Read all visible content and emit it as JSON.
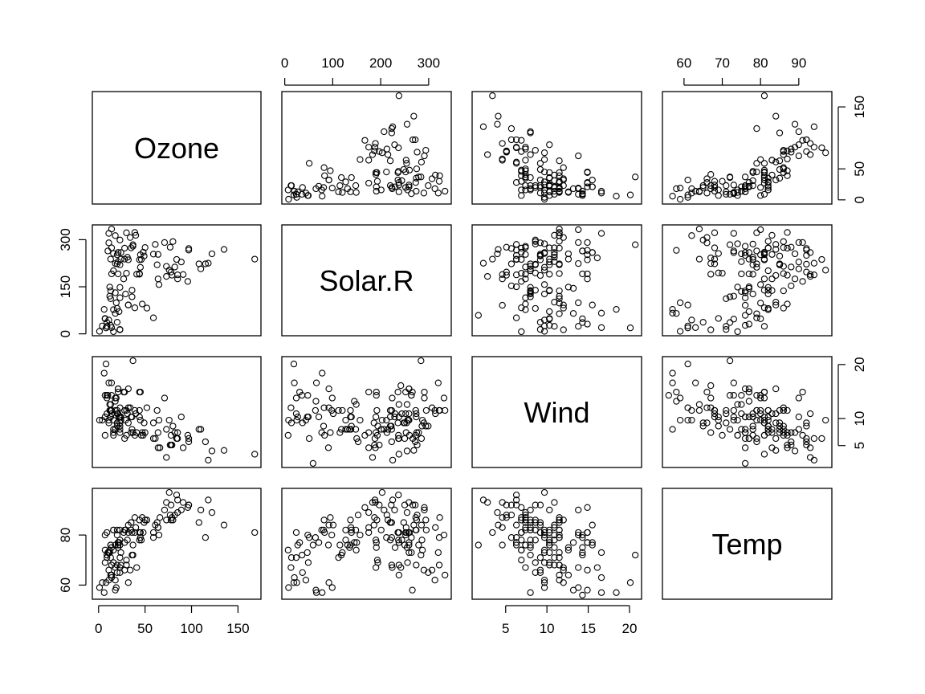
{
  "chart_data": {
    "type": "scatter",
    "subtype": "scatterplot-matrix",
    "grid": false,
    "variables": [
      {
        "name": "Ozone",
        "range": [
          0,
          168
        ],
        "ticks": [
          0,
          50,
          100,
          150
        ]
      },
      {
        "name": "Solar.R",
        "range": [
          7,
          334
        ],
        "ticks": [
          0,
          150,
          300
        ]
      },
      {
        "name": "Wind",
        "range": [
          1.7,
          20.7
        ],
        "ticks": [
          5,
          10,
          15,
          20
        ]
      },
      {
        "name": "Temp",
        "range": [
          56,
          97
        ],
        "ticks": [
          60,
          80
        ]
      }
    ],
    "outer_ticks": {
      "top": [
        {
          "var": 1,
          "ticks": [
            0,
            100,
            200,
            300
          ]
        },
        {
          "var": 3,
          "ticks": [
            60,
            70,
            80,
            90
          ]
        }
      ],
      "right": [
        {
          "var": 0,
          "ticks": [
            0,
            50,
            150
          ]
        },
        {
          "var": 2,
          "ticks": [
            5,
            10,
            20
          ]
        }
      ],
      "bottom": [
        {
          "var": 0,
          "ticks": [
            0,
            50,
            100,
            150
          ]
        },
        {
          "var": 2,
          "ticks": [
            5,
            10,
            15,
            20
          ]
        }
      ],
      "left": [
        {
          "var": 1,
          "ticks": [
            0,
            150,
            300
          ]
        },
        {
          "var": 3,
          "ticks": [
            60,
            80
          ]
        }
      ]
    },
    "observations": [
      [
        41,
        190,
        7.4,
        67
      ],
      [
        36,
        118,
        8.0,
        72
      ],
      [
        12,
        149,
        12.6,
        74
      ],
      [
        18,
        313,
        11.5,
        62
      ],
      [
        null,
        null,
        14.3,
        56
      ],
      [
        28,
        null,
        14.9,
        66
      ],
      [
        23,
        299,
        8.6,
        65
      ],
      [
        19,
        99,
        13.8,
        59
      ],
      [
        8,
        19,
        20.1,
        61
      ],
      [
        null,
        194,
        8.6,
        69
      ],
      [
        7,
        null,
        6.9,
        74
      ],
      [
        16,
        256,
        9.7,
        69
      ],
      [
        11,
        290,
        9.2,
        66
      ],
      [
        14,
        274,
        10.9,
        68
      ],
      [
        18,
        65,
        13.2,
        58
      ],
      [
        14,
        334,
        11.5,
        64
      ],
      [
        34,
        307,
        12.0,
        66
      ],
      [
        6,
        78,
        18.4,
        57
      ],
      [
        30,
        322,
        11.5,
        68
      ],
      [
        11,
        44,
        9.7,
        62
      ],
      [
        1,
        8,
        9.7,
        59
      ],
      [
        11,
        320,
        16.6,
        73
      ],
      [
        4,
        25,
        9.7,
        61
      ],
      [
        32,
        92,
        12.0,
        61
      ],
      [
        null,
        66,
        16.6,
        57
      ],
      [
        null,
        266,
        14.9,
        58
      ],
      [
        null,
        null,
        8.0,
        57
      ],
      [
        23,
        13,
        12.0,
        67
      ],
      [
        45,
        252,
        14.9,
        81
      ],
      [
        115,
        223,
        5.7,
        79
      ],
      [
        37,
        279,
        7.4,
        76
      ],
      [
        null,
        286,
        8.6,
        78
      ],
      [
        null,
        287,
        9.7,
        74
      ],
      [
        null,
        242,
        16.1,
        67
      ],
      [
        null,
        186,
        9.2,
        84
      ],
      [
        null,
        220,
        8.6,
        85
      ],
      [
        null,
        264,
        14.3,
        79
      ],
      [
        29,
        127,
        9.7,
        82
      ],
      [
        null,
        273,
        6.9,
        87
      ],
      [
        71,
        291,
        13.8,
        90
      ],
      [
        39,
        323,
        11.5,
        87
      ],
      [
        null,
        259,
        10.9,
        93
      ],
      [
        null,
        250,
        9.2,
        92
      ],
      [
        23,
        148,
        8.0,
        82
      ],
      [
        null,
        332,
        13.8,
        80
      ],
      [
        null,
        322,
        11.5,
        79
      ],
      [
        21,
        191,
        14.9,
        77
      ],
      [
        37,
        284,
        20.7,
        72
      ],
      [
        20,
        37,
        9.2,
        65
      ],
      [
        12,
        120,
        11.5,
        73
      ],
      [
        13,
        137,
        10.3,
        76
      ],
      [
        null,
        150,
        6.3,
        77
      ],
      [
        null,
        59,
        1.7,
        76
      ],
      [
        null,
        91,
        4.6,
        76
      ],
      [
        null,
        250,
        6.3,
        76
      ],
      [
        null,
        135,
        8.0,
        75
      ],
      [
        null,
        127,
        8.0,
        78
      ],
      [
        null,
        47,
        10.3,
        73
      ],
      [
        null,
        98,
        11.5,
        80
      ],
      [
        null,
        31,
        14.9,
        77
      ],
      [
        null,
        138,
        8.0,
        83
      ],
      [
        135,
        269,
        4.1,
        84
      ],
      [
        49,
        248,
        9.2,
        85
      ],
      [
        32,
        236,
        9.2,
        81
      ],
      [
        null,
        101,
        10.9,
        84
      ],
      [
        64,
        175,
        4.6,
        83
      ],
      [
        40,
        314,
        10.9,
        83
      ],
      [
        77,
        276,
        5.1,
        88
      ],
      [
        97,
        267,
        6.3,
        92
      ],
      [
        97,
        272,
        5.7,
        92
      ],
      [
        85,
        175,
        7.4,
        89
      ],
      [
        null,
        139,
        8.6,
        82
      ],
      [
        10,
        264,
        14.3,
        73
      ],
      [
        27,
        175,
        14.9,
        81
      ],
      [
        null,
        291,
        14.9,
        91
      ],
      [
        7,
        48,
        14.3,
        80
      ],
      [
        48,
        260,
        6.9,
        81
      ],
      [
        35,
        274,
        10.3,
        82
      ],
      [
        61,
        285,
        6.3,
        84
      ],
      [
        79,
        187,
        5.1,
        87
      ],
      [
        63,
        220,
        11.5,
        85
      ],
      [
        16,
        7,
        6.9,
        74
      ],
      [
        null,
        258,
        9.7,
        81
      ],
      [
        null,
        295,
        11.5,
        82
      ],
      [
        80,
        294,
        8.6,
        86
      ],
      [
        108,
        223,
        8.0,
        85
      ],
      [
        20,
        81,
        8.6,
        82
      ],
      [
        52,
        82,
        12.0,
        86
      ],
      [
        82,
        213,
        7.4,
        88
      ],
      [
        50,
        275,
        7.4,
        86
      ],
      [
        64,
        253,
        7.4,
        83
      ],
      [
        59,
        254,
        9.2,
        81
      ],
      [
        39,
        83,
        6.9,
        81
      ],
      [
        9,
        24,
        13.8,
        81
      ],
      [
        16,
        77,
        7.4,
        82
      ],
      [
        78,
        null,
        6.9,
        86
      ],
      [
        35,
        null,
        7.4,
        85
      ],
      [
        66,
        null,
        4.6,
        87
      ],
      [
        122,
        255,
        4.0,
        89
      ],
      [
        89,
        229,
        10.3,
        90
      ],
      [
        110,
        207,
        8.0,
        90
      ],
      [
        null,
        222,
        8.6,
        92
      ],
      [
        null,
        137,
        11.5,
        86
      ],
      [
        44,
        192,
        11.5,
        86
      ],
      [
        28,
        273,
        11.5,
        82
      ],
      [
        65,
        157,
        9.7,
        80
      ],
      [
        null,
        64,
        11.5,
        79
      ],
      [
        22,
        71,
        10.3,
        77
      ],
      [
        59,
        51,
        6.3,
        79
      ],
      [
        23,
        115,
        7.4,
        76
      ],
      [
        31,
        244,
        10.9,
        78
      ],
      [
        44,
        190,
        10.3,
        78
      ],
      [
        21,
        259,
        15.5,
        77
      ],
      [
        9,
        36,
        14.3,
        72
      ],
      [
        null,
        255,
        12.6,
        75
      ],
      [
        45,
        212,
        9.7,
        79
      ],
      [
        168,
        238,
        3.4,
        81
      ],
      [
        73,
        215,
        8.0,
        86
      ],
      [
        null,
        153,
        5.7,
        88
      ],
      [
        76,
        203,
        9.7,
        97
      ],
      [
        118,
        225,
        2.3,
        94
      ],
      [
        84,
        237,
        6.3,
        96
      ],
      [
        85,
        188,
        6.3,
        94
      ],
      [
        96,
        167,
        6.9,
        91
      ],
      [
        78,
        197,
        5.1,
        92
      ],
      [
        73,
        183,
        2.8,
        93
      ],
      [
        91,
        189,
        4.6,
        93
      ],
      [
        47,
        95,
        7.4,
        87
      ],
      [
        32,
        92,
        15.5,
        84
      ],
      [
        20,
        252,
        10.9,
        80
      ],
      [
        23,
        220,
        10.3,
        78
      ],
      [
        21,
        230,
        10.9,
        75
      ],
      [
        24,
        259,
        9.7,
        73
      ],
      [
        44,
        236,
        14.9,
        81
      ],
      [
        21,
        259,
        15.5,
        76
      ],
      [
        28,
        238,
        6.3,
        77
      ],
      [
        9,
        24,
        10.9,
        71
      ],
      [
        13,
        112,
        11.5,
        71
      ],
      [
        46,
        237,
        6.9,
        78
      ],
      [
        18,
        224,
        13.8,
        67
      ],
      [
        13,
        27,
        10.3,
        76
      ],
      [
        24,
        238,
        10.3,
        68
      ],
      [
        16,
        201,
        8.0,
        82
      ],
      [
        13,
        238,
        12.6,
        64
      ],
      [
        23,
        14,
        9.2,
        71
      ],
      [
        36,
        139,
        10.3,
        81
      ],
      [
        7,
        49,
        10.3,
        69
      ],
      [
        14,
        20,
        16.6,
        63
      ],
      [
        30,
        193,
        6.9,
        70
      ],
      [
        null,
        145,
        13.2,
        77
      ],
      [
        14,
        191,
        14.3,
        75
      ],
      [
        18,
        131,
        8.0,
        76
      ],
      [
        20,
        223,
        11.5,
        68
      ]
    ]
  }
}
